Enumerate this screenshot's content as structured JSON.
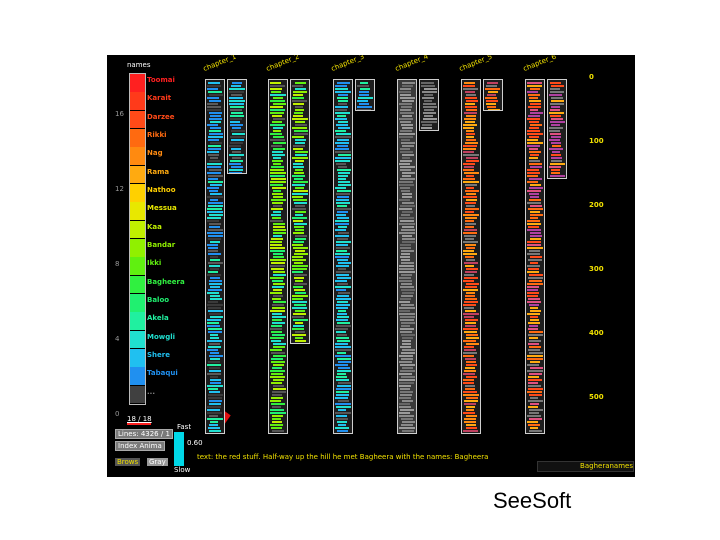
{
  "caption": "SeeSoft",
  "legend": {
    "title": "names",
    "names": [
      {
        "label": "Toomai",
        "color": "#ff2020"
      },
      {
        "label": "Karait",
        "color": "#ff3a1a"
      },
      {
        "label": "Darzee",
        "color": "#ff4a18"
      },
      {
        "label": "Rikki",
        "color": "#ff6a10"
      },
      {
        "label": "Nag",
        "color": "#ff8a10"
      },
      {
        "label": "Rama",
        "color": "#ffaa10"
      },
      {
        "label": "Nathoo",
        "color": "#ffd000"
      },
      {
        "label": "Messua",
        "color": "#e8e800"
      },
      {
        "label": "Kaa",
        "color": "#c0f000"
      },
      {
        "label": "Bandar",
        "color": "#90f000"
      },
      {
        "label": "Ikki",
        "color": "#60f010"
      },
      {
        "label": "Bagheera",
        "color": "#30f040"
      },
      {
        "label": "Baloo",
        "color": "#20f070"
      },
      {
        "label": "Akela",
        "color": "#20f0a0"
      },
      {
        "label": "Mowgli",
        "color": "#20e0d0"
      },
      {
        "label": "Shere",
        "color": "#20c0f0"
      },
      {
        "label": "Tabaqui",
        "color": "#2090f0"
      },
      {
        "label": "...",
        "color": "#404040"
      }
    ],
    "scale_ticks": [
      "16",
      "12",
      "8",
      "4",
      "0"
    ],
    "count_readout": "18 / 18"
  },
  "chapters": [
    {
      "label": "chapter_1"
    },
    {
      "label": "chapter_2"
    },
    {
      "label": "chapter_3"
    },
    {
      "label": "chapter_4"
    },
    {
      "label": "chapter_5"
    },
    {
      "label": "chapter_6"
    }
  ],
  "line_axis": [
    "0",
    "100",
    "200",
    "300",
    "400",
    "500"
  ],
  "controls": {
    "lines": "Lines: 4326 / 1",
    "index_anim": "Index Anima",
    "brows": "Brows",
    "gray": "Gray",
    "fast": "Fast",
    "slow": "Slow",
    "speed": "0.60"
  },
  "status_text": "text: the red stuff. Half-way up the hill he met Bagheera with the names: Bagheera",
  "search_value": "Bagheranames"
}
